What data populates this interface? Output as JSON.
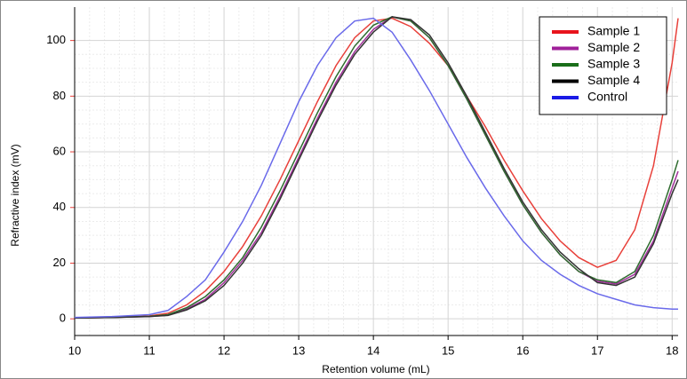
{
  "chart_data": {
    "type": "line",
    "x_label": "Retention volume (mL)",
    "y_label": "Refractive index (mV)",
    "x": [
      10,
      10.5,
      11,
      11.25,
      11.5,
      11.75,
      12,
      12.25,
      12.5,
      12.75,
      13,
      13.25,
      13.5,
      13.75,
      14,
      14.25,
      14.5,
      14.75,
      15,
      15.25,
      15.5,
      15.75,
      16,
      16.25,
      16.5,
      16.75,
      17,
      17.25,
      17.5,
      17.75,
      18,
      18.08
    ],
    "series": [
      {
        "name": "Sample 1",
        "color": "#e8403a",
        "values": [
          0.3,
          0.5,
          1,
          2,
          5,
          10,
          17,
          26,
          37,
          50,
          64,
          78,
          91,
          101,
          107,
          108,
          105,
          99,
          91,
          80,
          69,
          57,
          46,
          36,
          28,
          22,
          18.5,
          21,
          32,
          55,
          92,
          108
        ]
      },
      {
        "name": "Sample 2",
        "color": "#a0309a",
        "values": [
          0.3,
          0.5,
          0.8,
          1.3,
          3.5,
          7,
          13,
          21,
          31,
          44,
          58,
          72,
          85,
          96,
          104,
          108.5,
          107,
          101,
          91,
          79,
          66,
          53,
          41,
          31,
          23,
          17,
          13.5,
          12.5,
          16,
          28,
          47,
          53
        ]
      },
      {
        "name": "Sample 3",
        "color": "#2e6b2e",
        "values": [
          0.3,
          0.5,
          0.9,
          1.5,
          4,
          8,
          14,
          22,
          33,
          46,
          60,
          74,
          87,
          98,
          105.5,
          108.5,
          107,
          101,
          91,
          79,
          66,
          53,
          41,
          31,
          23,
          17,
          14,
          13,
          17,
          30,
          50,
          57
        ]
      },
      {
        "name": "Sample 4",
        "color": "#333333",
        "values": [
          0.3,
          0.5,
          0.8,
          1.2,
          3.2,
          6.5,
          12,
          20,
          30,
          43,
          57,
          71,
          84,
          95,
          103,
          108.5,
          107.5,
          102,
          92,
          80,
          67,
          54,
          42,
          32,
          24,
          18,
          13,
          12,
          15,
          27,
          45,
          50
        ]
      },
      {
        "name": "Control",
        "color": "#6a6aea",
        "values": [
          0.5,
          0.8,
          1.5,
          3,
          8,
          14,
          24,
          35,
          48,
          63,
          78,
          91,
          101,
          107,
          108,
          103,
          93,
          82,
          70,
          58,
          47,
          37,
          28,
          21,
          16,
          12,
          9,
          7,
          5,
          4,
          3.5,
          3.5
        ]
      }
    ],
    "legend_colors": [
      "#e8141c",
      "#a0209a",
      "#1a6e1a",
      "#000000",
      "#1a1ae6"
    ],
    "xlim": [
      10,
      18.08
    ],
    "ylim": [
      -6,
      112
    ],
    "xticks": [
      10,
      11,
      12,
      13,
      14,
      15,
      16,
      17,
      18
    ],
    "yticks": [
      0,
      20,
      40,
      60,
      80,
      100
    ],
    "grid": true,
    "legend": "top-right",
    "y_axis_color": "#e8403a"
  }
}
